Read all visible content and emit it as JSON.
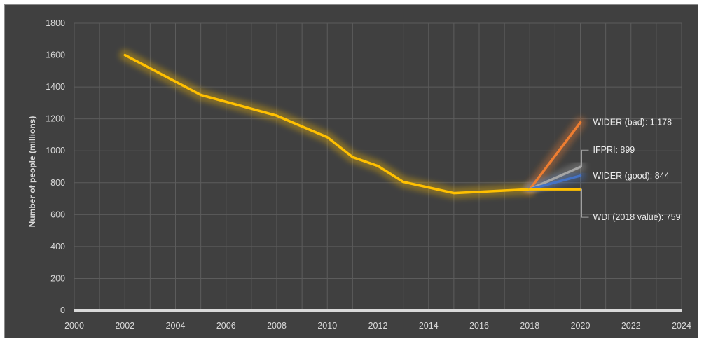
{
  "chart_data": {
    "type": "line",
    "title": "",
    "xlabel": "",
    "ylabel": "Number of people (millions)",
    "xlim": [
      2000,
      2024
    ],
    "ylim": [
      0,
      1800
    ],
    "x_ticks": [
      2000,
      2002,
      2004,
      2006,
      2008,
      2010,
      2012,
      2014,
      2016,
      2018,
      2020,
      2022,
      2024
    ],
    "y_ticks": [
      0,
      200,
      400,
      600,
      800,
      1000,
      1200,
      1400,
      1600,
      1800
    ],
    "grid": true,
    "legend": "none",
    "series": [
      {
        "name": "",
        "color": "#ffc000",
        "glow": true,
        "points": [
          [
            2002,
            1600
          ],
          [
            2005,
            1350
          ],
          [
            2008,
            1220
          ],
          [
            2010,
            1085
          ],
          [
            2011,
            960
          ],
          [
            2012,
            905
          ],
          [
            2013,
            805
          ],
          [
            2015,
            735
          ],
          [
            2018,
            759
          ]
        ]
      },
      {
        "name": "",
        "color": "#ed7d31",
        "glow": true,
        "points": [
          [
            2018,
            759
          ],
          [
            2020,
            1178
          ]
        ]
      },
      {
        "name": "",
        "color": "#a5a5a5",
        "glow": true,
        "points": [
          [
            2018,
            759
          ],
          [
            2020,
            899
          ]
        ]
      },
      {
        "name": "",
        "color": "#4472c4",
        "glow": true,
        "points": [
          [
            2018,
            759
          ],
          [
            2020,
            844
          ]
        ]
      },
      {
        "name": "",
        "color": "#ffc000",
        "glow": false,
        "points": [
          [
            2018,
            759
          ],
          [
            2020,
            759
          ]
        ]
      }
    ],
    "annotations": [
      {
        "text": "WIDER (bad): 1,178",
        "x": 2020,
        "y": 1178,
        "leader": false
      },
      {
        "text": "IFPRI: 899",
        "x": 2020,
        "y": 899,
        "leader": true
      },
      {
        "text": "WIDER (good): 844",
        "x": 2020,
        "y": 844,
        "leader": false
      },
      {
        "text": "WDI (2018 value): 759",
        "x": 2020,
        "y": 759,
        "leader": true
      }
    ]
  }
}
